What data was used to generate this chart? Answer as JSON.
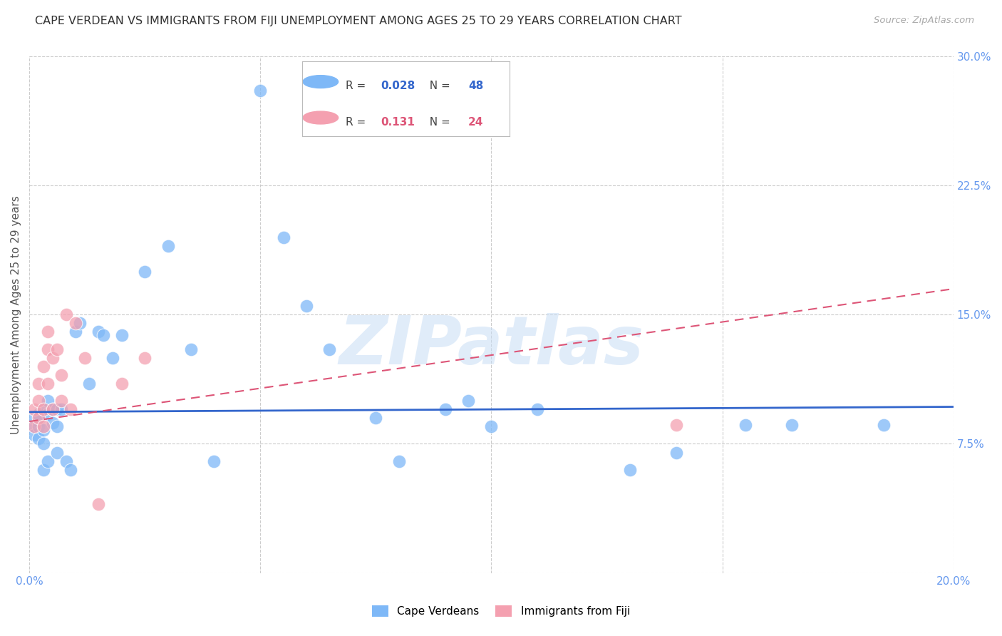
{
  "title": "CAPE VERDEAN VS IMMIGRANTS FROM FIJI UNEMPLOYMENT AMONG AGES 25 TO 29 YEARS CORRELATION CHART",
  "source": "Source: ZipAtlas.com",
  "ylabel": "Unemployment Among Ages 25 to 29 years",
  "xlim": [
    0.0,
    0.2
  ],
  "ylim": [
    0.0,
    0.3
  ],
  "xticks": [
    0.0,
    0.05,
    0.1,
    0.15,
    0.2
  ],
  "yticks_right": [
    0.0,
    0.075,
    0.15,
    0.225,
    0.3
  ],
  "ytick_labels_right": [
    "",
    "7.5%",
    "15.0%",
    "22.5%",
    "30.0%"
  ],
  "xtick_labels": [
    "0.0%",
    "",
    "",
    "",
    "20.0%"
  ],
  "legend1_R": "0.028",
  "legend1_N": "48",
  "legend2_R": "0.131",
  "legend2_N": "24",
  "cv_color": "#7eb8f7",
  "fiji_color": "#f4a0b0",
  "cv_line_color": "#3366cc",
  "fiji_line_color": "#dd5577",
  "bg_color": "#ffffff",
  "grid_color": "#cccccc",
  "watermark": "ZIPatlas",
  "cv_line": [
    0.0935,
    0.0965
  ],
  "fiji_line": [
    0.088,
    0.165
  ],
  "cape_verdean_x": [
    0.001,
    0.001,
    0.001,
    0.002,
    0.002,
    0.002,
    0.002,
    0.003,
    0.003,
    0.003,
    0.003,
    0.004,
    0.004,
    0.004,
    0.005,
    0.005,
    0.006,
    0.006,
    0.006,
    0.007,
    0.008,
    0.009,
    0.01,
    0.011,
    0.013,
    0.015,
    0.016,
    0.018,
    0.02,
    0.025,
    0.03,
    0.035,
    0.04,
    0.05,
    0.055,
    0.06,
    0.065,
    0.075,
    0.08,
    0.09,
    0.095,
    0.1,
    0.11,
    0.13,
    0.14,
    0.155,
    0.165,
    0.185
  ],
  "cape_verdean_y": [
    0.085,
    0.09,
    0.08,
    0.088,
    0.092,
    0.085,
    0.078,
    0.095,
    0.083,
    0.075,
    0.06,
    0.1,
    0.092,
    0.065,
    0.095,
    0.087,
    0.095,
    0.085,
    0.07,
    0.095,
    0.065,
    0.06,
    0.14,
    0.145,
    0.11,
    0.14,
    0.138,
    0.125,
    0.138,
    0.175,
    0.19,
    0.13,
    0.065,
    0.28,
    0.195,
    0.155,
    0.13,
    0.09,
    0.065,
    0.095,
    0.1,
    0.085,
    0.095,
    0.06,
    0.07,
    0.086,
    0.086,
    0.086
  ],
  "fiji_x": [
    0.001,
    0.001,
    0.002,
    0.002,
    0.002,
    0.003,
    0.003,
    0.003,
    0.004,
    0.004,
    0.004,
    0.005,
    0.005,
    0.006,
    0.007,
    0.007,
    0.008,
    0.009,
    0.01,
    0.012,
    0.015,
    0.02,
    0.025,
    0.14
  ],
  "fiji_y": [
    0.085,
    0.095,
    0.09,
    0.1,
    0.11,
    0.085,
    0.095,
    0.12,
    0.13,
    0.14,
    0.11,
    0.095,
    0.125,
    0.13,
    0.1,
    0.115,
    0.15,
    0.095,
    0.145,
    0.125,
    0.04,
    0.11,
    0.125,
    0.086
  ]
}
